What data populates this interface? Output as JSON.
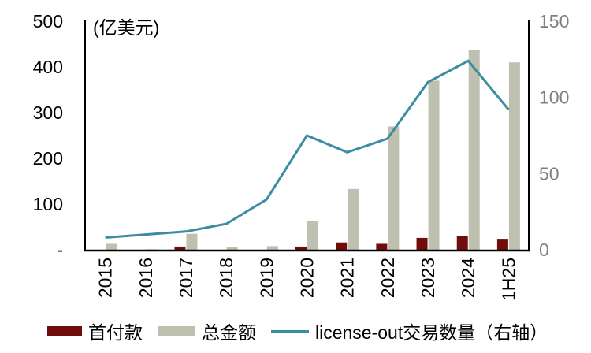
{
  "chart_data": {
    "type": "combo-bar-line",
    "categories": [
      "2015",
      "2016",
      "2017",
      "2018",
      "2019",
      "2020",
      "2021",
      "2022",
      "2023",
      "2024",
      "1H25"
    ],
    "series": [
      {
        "name": "首付款",
        "type": "bar",
        "axis": "left",
        "color": "#6F0D0C",
        "values": [
          0,
          0,
          7,
          0,
          0,
          7,
          16,
          13,
          26,
          31,
          24
        ]
      },
      {
        "name": "总金额",
        "type": "bar",
        "axis": "left",
        "color": "#BFC0AF",
        "values": [
          13,
          1,
          35,
          6,
          8,
          63,
          133,
          270,
          370,
          437,
          410
        ]
      },
      {
        "name": "license-out交易数量（右轴）",
        "type": "line",
        "axis": "right",
        "color": "#3C8DA4",
        "values": [
          8,
          10,
          12,
          17,
          33,
          75,
          64,
          73,
          110,
          124,
          92
        ]
      }
    ],
    "left_axis": {
      "label": "(亿美元)",
      "min": 0,
      "max": 500,
      "tick_labels": [
        "500",
        "400",
        "300",
        "200",
        "100",
        "-"
      ],
      "tick_values": [
        500,
        400,
        300,
        200,
        100,
        0
      ],
      "text_color": "#000000"
    },
    "right_axis": {
      "min": 0,
      "max": 150,
      "tick_labels": [
        "150",
        "100",
        "50",
        "0"
      ],
      "tick_values": [
        150,
        100,
        50,
        0
      ],
      "text_color": "#7F7F7F"
    },
    "axis_line_color": "#000000",
    "grid": false,
    "legend_position": "bottom"
  }
}
